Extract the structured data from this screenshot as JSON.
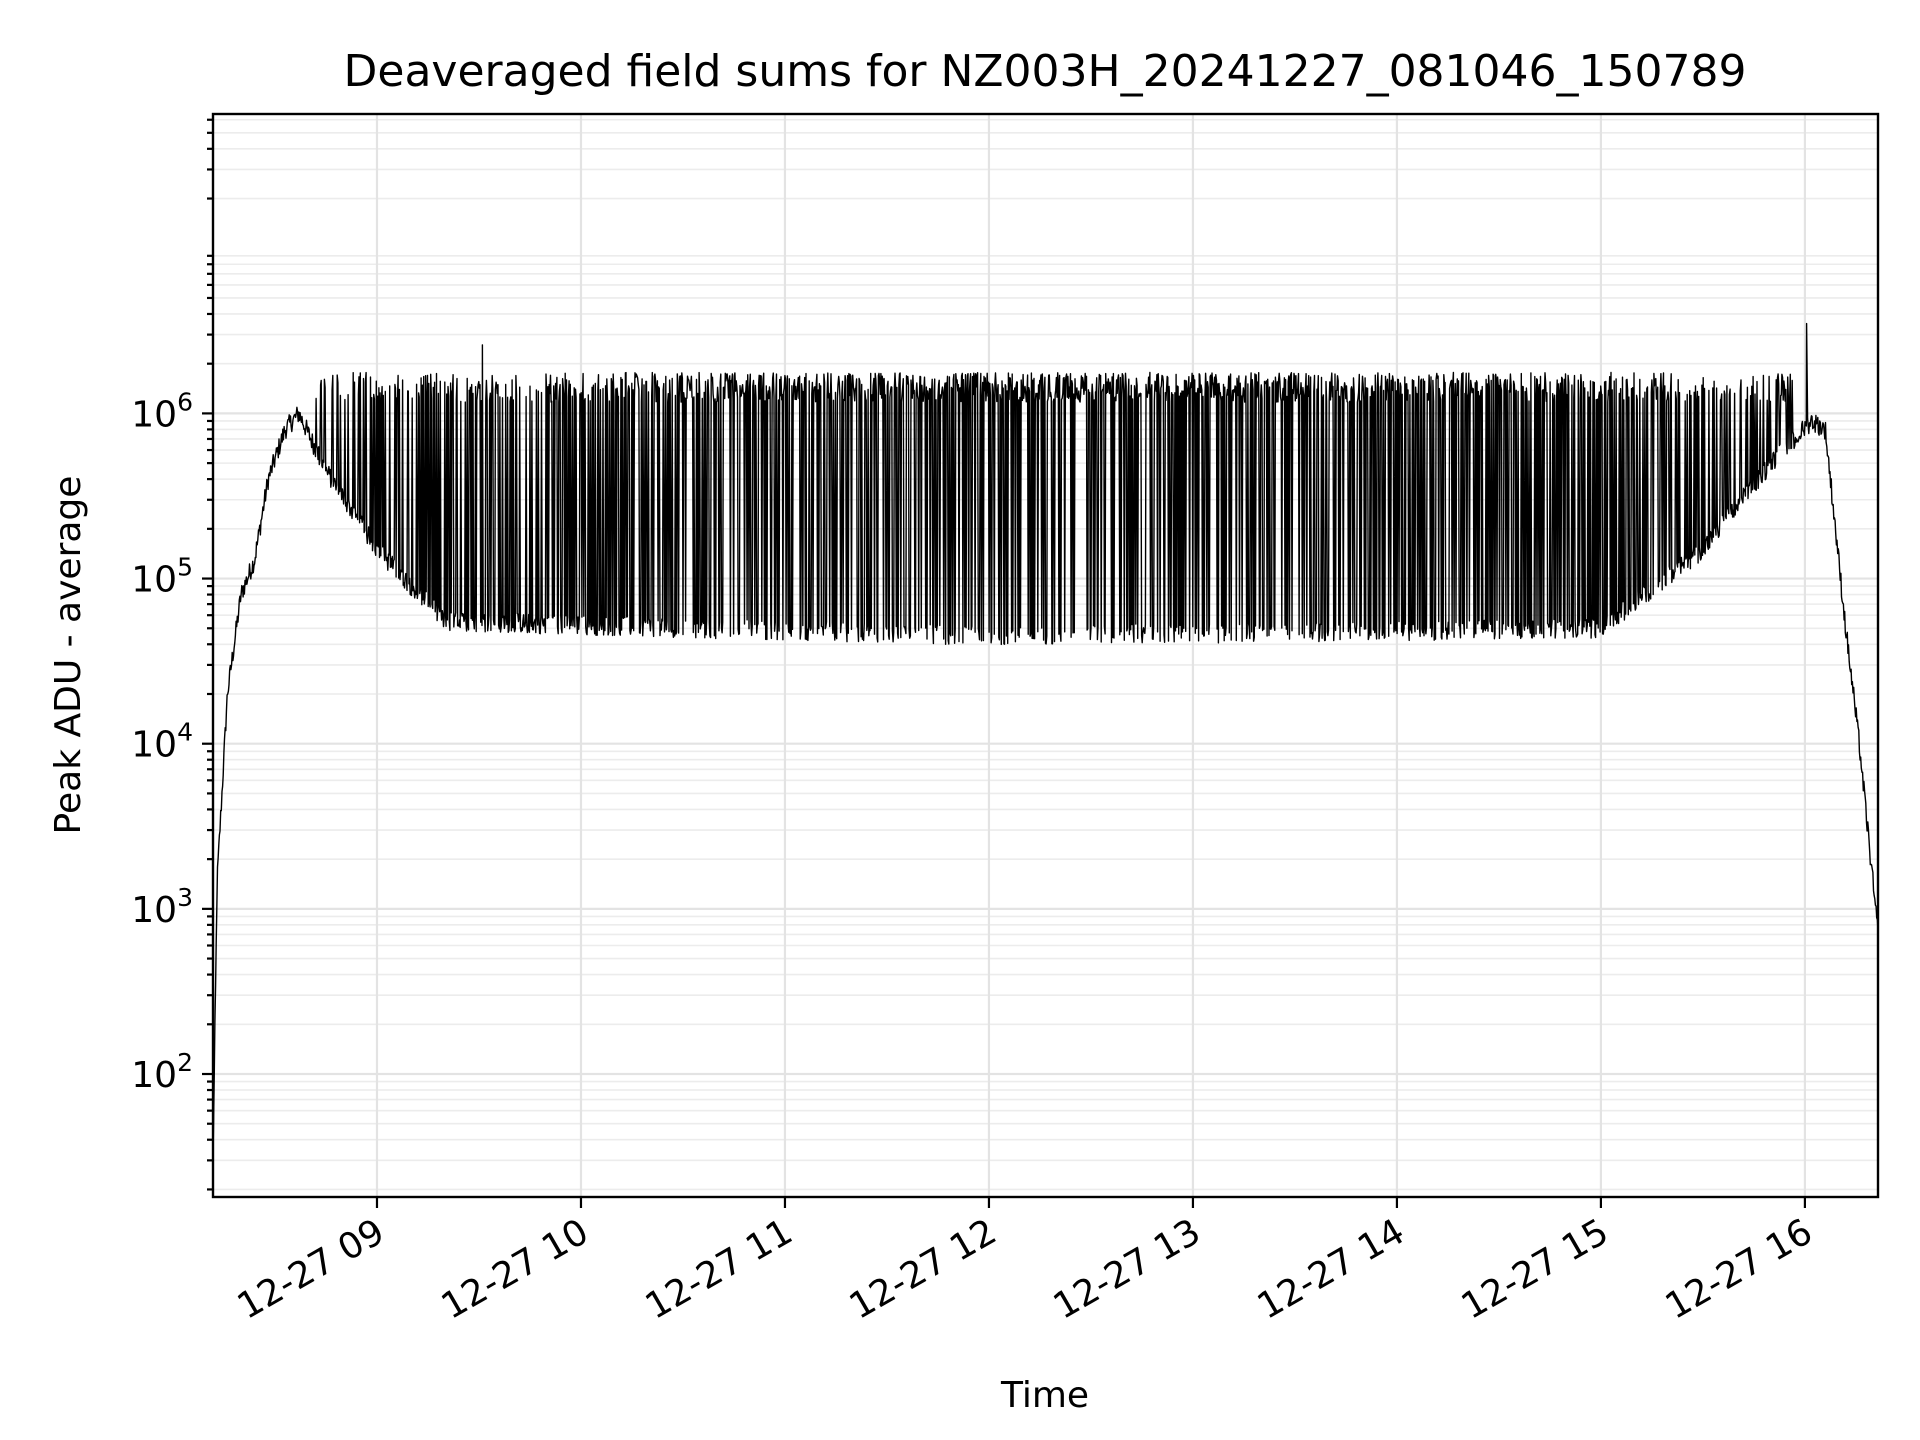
{
  "chart_data": {
    "type": "line",
    "title": "Deaveraged field sums for NZ003H_20241227_081046_150789",
    "xlabel": "Time",
    "ylabel": "Peak ADU - average",
    "yscale": "log",
    "ylim": [
      18,
      65000000
    ],
    "xlim": [
      "2024-12-27T08:11:46",
      "2024-12-27T16:21:30"
    ],
    "grid": true,
    "grid_minor_y": true,
    "x_ticks": [
      {
        "value": "2024-12-27T09:00:00",
        "label": "12-27 09"
      },
      {
        "value": "2024-12-27T10:00:00",
        "label": "12-27 10"
      },
      {
        "value": "2024-12-27T11:00:00",
        "label": "12-27 11"
      },
      {
        "value": "2024-12-27T12:00:00",
        "label": "12-27 12"
      },
      {
        "value": "2024-12-27T13:00:00",
        "label": "12-27 13"
      },
      {
        "value": "2024-12-27T14:00:00",
        "label": "12-27 14"
      },
      {
        "value": "2024-12-27T15:00:00",
        "label": "12-27 15"
      },
      {
        "value": "2024-12-27T16:00:00",
        "label": "12-27 16"
      }
    ],
    "y_ticks": [
      {
        "value": 100,
        "base": "10",
        "exp": "2"
      },
      {
        "value": 1000,
        "base": "10",
        "exp": "3"
      },
      {
        "value": 10000,
        "base": "10",
        "exp": "4"
      },
      {
        "value": 100000,
        "base": "10",
        "exp": "5"
      },
      {
        "value": 1000000,
        "base": "10",
        "exp": "6"
      }
    ],
    "series": [
      {
        "color": "#000000",
        "description_points": [
          {
            "x": "2024-12-27T08:11:46",
            "y": 30
          },
          {
            "x": "2024-12-27T08:13:00",
            "y": 1500
          },
          {
            "x": "2024-12-27T08:16:00",
            "y": 20000
          },
          {
            "x": "2024-12-27T08:20:00",
            "y": 80000
          },
          {
            "x": "2024-12-27T08:24:00",
            "y": 130000
          },
          {
            "x": "2024-12-27T08:28:00",
            "y": 400000
          },
          {
            "x": "2024-12-27T08:33:00",
            "y": 800000
          },
          {
            "x": "2024-12-27T08:37:00",
            "y": 1000000
          },
          {
            "x": "2024-12-27T08:45:00",
            "y": 450000
          },
          {
            "x": "2024-12-27T09:00:00",
            "y": 150000
          },
          {
            "x": "2024-12-27T09:20:00",
            "y": 55000
          },
          {
            "x": "2024-12-27T12:00:00",
            "y": 45000
          },
          {
            "x": "2024-12-27T15:00:00",
            "y": 50000
          },
          {
            "x": "2024-12-27T15:30:00",
            "y": 150000
          },
          {
            "x": "2024-12-27T15:50:00",
            "y": 500000
          },
          {
            "x": "2024-12-27T16:02:00",
            "y": 900000
          },
          {
            "x": "2024-12-27T16:06:00",
            "y": 800000
          },
          {
            "x": "2024-12-27T16:12:00",
            "y": 50000
          },
          {
            "x": "2024-12-27T16:16:00",
            "y": 10000
          },
          {
            "x": "2024-12-27T16:21:30",
            "y": 700
          }
        ],
        "spike_tops_approx": 1500000,
        "spike_peaks": [
          {
            "x": "2024-12-27T09:31:00",
            "y": 2600000
          },
          {
            "x": "2024-12-27T16:00:30",
            "y": 3500000
          }
        ]
      }
    ]
  }
}
